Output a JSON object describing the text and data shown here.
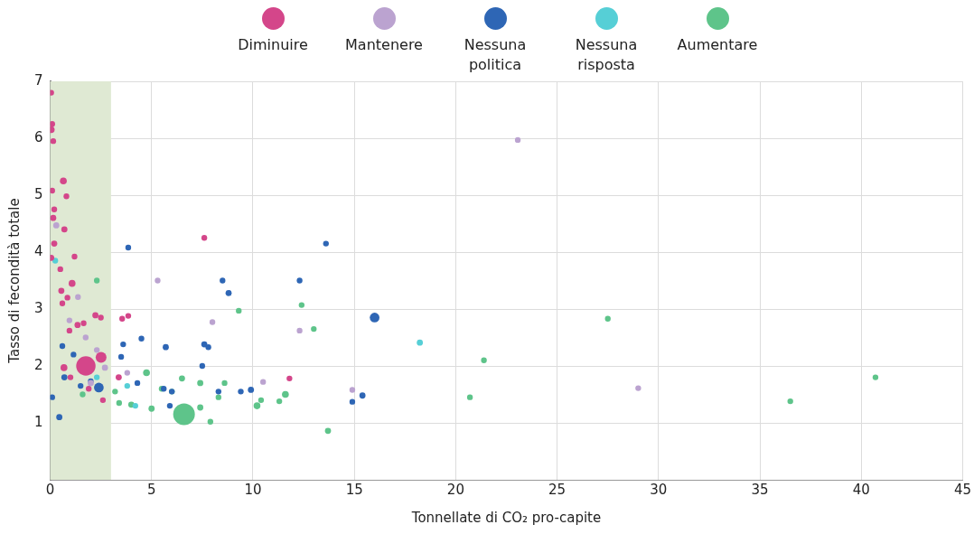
{
  "chart_data": {
    "type": "bubble",
    "xlabel": "Tonnellate di CO₂ pro-capite",
    "ylabel": "Tasso di fecondità totale",
    "xlim": [
      0,
      45
    ],
    "xticks": [
      0,
      5,
      10,
      15,
      20,
      25,
      30,
      35,
      40,
      45
    ],
    "ylim": [
      0,
      7
    ],
    "yticks": [
      1,
      2,
      3,
      4,
      5,
      6,
      7
    ],
    "grid": true,
    "legend": "top",
    "bands": [
      {
        "axis": "x",
        "from": 0,
        "to": 3,
        "color": "#dfe9d3"
      }
    ],
    "series": [
      {
        "name": "Diminuire",
        "color": "#d4468a",
        "x": [
          0.05,
          0.05,
          0.1,
          0.15,
          0.65,
          0.1,
          0.2,
          0.15,
          0.8,
          0.7,
          0.2,
          0.05,
          1.2,
          0.5,
          1.08,
          0.55,
          0.85,
          0.6,
          2.23,
          1.35,
          0.95,
          1.65,
          2.5,
          3.55,
          3.85,
          1.76,
          2.51,
          0.68,
          3.38,
          1.0,
          1.9,
          2.6,
          7.6,
          11.8
        ],
        "values": [
          6.8,
          6.15,
          6.25,
          5.95,
          5.25,
          5.08,
          4.75,
          4.6,
          4.98,
          4.4,
          4.15,
          3.9,
          3.92,
          3.7,
          3.45,
          3.32,
          3.2,
          3.1,
          2.89,
          2.72,
          2.62,
          2.75,
          2.85,
          2.83,
          2.88,
          2.0,
          2.15,
          1.97,
          1.8,
          1.8,
          1.6,
          1.4,
          4.25,
          1.78
        ],
        "sizes": [
          0.07,
          0.1,
          0.07,
          0.07,
          0.1,
          0.07,
          0.07,
          0.08,
          0.07,
          0.08,
          0.08,
          0.08,
          0.07,
          0.07,
          0.1,
          0.08,
          0.07,
          0.07,
          0.08,
          0.08,
          0.07,
          0.07,
          0.07,
          0.07,
          0.07,
          0.8,
          0.25,
          0.1,
          0.08,
          0.07,
          0.07,
          0.07,
          0.07,
          0.07
        ]
      },
      {
        "name": "Mantenere",
        "color": "#bba3d0",
        "x": [
          0.3,
          2.0,
          0.95,
          2.7,
          2.3,
          1.75,
          1.37,
          3.8,
          5.3,
          8.0,
          12.3,
          14.9,
          23.06,
          29.0,
          10.5
        ],
        "values": [
          4.47,
          1.7,
          2.8,
          1.97,
          2.28,
          2.5,
          3.21,
          1.88,
          3.5,
          2.77,
          2.62,
          1.58,
          5.97,
          1.61,
          1.72
        ],
        "sizes": [
          0.08,
          0.08,
          0.07,
          0.08,
          0.07,
          0.07,
          0.07,
          0.07,
          0.07,
          0.07,
          0.07,
          0.07,
          0.07,
          0.07,
          0.07
        ]
      },
      {
        "name": "Nessuna politica",
        "color": "#2e66b5",
        "x": [
          16.0,
          2.4,
          7.6,
          5.7,
          3.85,
          13.6,
          8.5,
          8.8,
          12.3,
          9.9,
          15.4,
          14.9,
          3.6,
          4.5,
          7.8,
          7.5,
          0.7,
          0.45,
          0.1,
          0.6,
          1.15,
          2.0,
          1.5,
          3.5,
          4.3,
          6.0,
          8.3,
          5.6,
          5.9,
          9.4
        ],
        "values": [
          2.85,
          1.62,
          2.38,
          2.33,
          4.08,
          4.15,
          3.5,
          3.28,
          3.5,
          1.58,
          1.48,
          1.37,
          2.38,
          2.48,
          2.33,
          2.0,
          1.8,
          1.1,
          1.45,
          2.35,
          2.2,
          1.73,
          1.65,
          2.16,
          1.7,
          1.55,
          1.55,
          1.6,
          1.3,
          1.55
        ],
        "sizes": [
          0.2,
          0.2,
          0.08,
          0.08,
          0.07,
          0.07,
          0.07,
          0.08,
          0.07,
          0.08,
          0.08,
          0.07,
          0.07,
          0.07,
          0.07,
          0.07,
          0.08,
          0.08,
          0.07,
          0.07,
          0.07,
          0.07,
          0.07,
          0.07,
          0.07,
          0.07,
          0.07,
          0.07,
          0.07,
          0.07
        ]
      },
      {
        "name": "Nessuna risposta",
        "color": "#56cfd6",
        "x": [
          18.23,
          3.8,
          4.2,
          2.3,
          0.25
        ],
        "values": [
          2.41,
          1.65,
          1.3,
          1.8,
          3.85
        ],
        "sizes": [
          0.08,
          0.07,
          0.07,
          0.07,
          0.07
        ]
      },
      {
        "name": "Aumentare",
        "color": "#5ec48a",
        "x": [
          6.6,
          4.75,
          7.4,
          11.6,
          10.2,
          4.0,
          7.4,
          13.7,
          6.5,
          6.0,
          5.0,
          9.3,
          12.4,
          13.0,
          21.39,
          20.7,
          27.5,
          36.5,
          40.7,
          7.9,
          8.3,
          3.4,
          3.2,
          5.5,
          8.6,
          1.6,
          2.3,
          11.3,
          10.4
        ],
        "values": [
          1.15,
          1.88,
          1.7,
          1.5,
          1.3,
          1.32,
          1.27,
          0.86,
          1.78,
          1.55,
          1.25,
          2.97,
          3.07,
          2.65,
          2.1,
          1.45,
          2.83,
          1.38,
          1.8,
          1.02,
          1.45,
          1.35,
          1.55,
          1.6,
          1.7,
          1.5,
          3.5,
          1.38,
          1.4
        ],
        "sizes": [
          1,
          0.1,
          0.08,
          0.1,
          0.1,
          0.08,
          0.08,
          0.08,
          0.08,
          0.07,
          0.08,
          0.07,
          0.07,
          0.07,
          0.07,
          0.07,
          0.07,
          0.07,
          0.07,
          0.07,
          0.07,
          0.07,
          0.07,
          0.07,
          0.07,
          0.07,
          0.07,
          0.07,
          0.07
        ]
      }
    ]
  }
}
